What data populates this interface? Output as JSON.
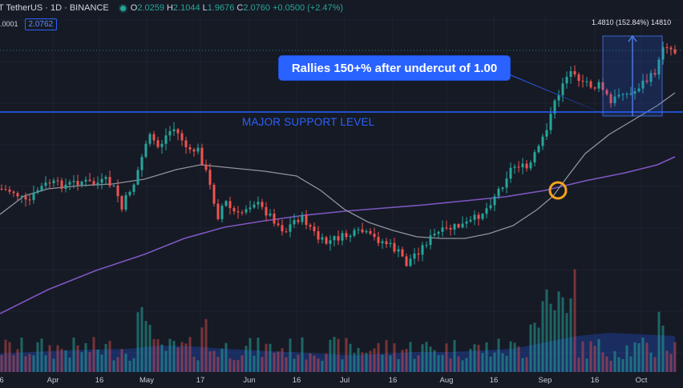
{
  "header": {
    "symbol": "T TetherUS · 1D · BINANCE",
    "o_label": "O",
    "o_value": "2.0259",
    "h_label": "H",
    "h_value": "2.1044",
    "l_label": "L",
    "l_value": "1.9676",
    "c_label": "C",
    "c_value": "2.0760 +0.0500 (+2.47%)",
    "sub_label": ".0001",
    "sub_value": "2.0762"
  },
  "annotations": {
    "callout": "Rallies 150+% after undercut of 1.00",
    "support": "MAJOR SUPPORT LEVEL",
    "measure": "1.4810 (152.84%) 14810"
  },
  "colors": {
    "background": "#161a25",
    "up": "#26a69a",
    "down": "#ef5350",
    "ma_fast": "#8f939b",
    "ma_slow": "#7e57c2",
    "support": "#2962ff",
    "circle": "#f7a21b"
  },
  "chart_data": {
    "type": "candlestick",
    "x_ticks": [
      "6",
      "Apr",
      "16",
      "May",
      "17",
      "Jun",
      "16",
      "Jul",
      "16",
      "Aug",
      "16",
      "Sep",
      "16",
      "Oct"
    ],
    "support_level": 1.0,
    "grid": true,
    "legend": "none"
  }
}
